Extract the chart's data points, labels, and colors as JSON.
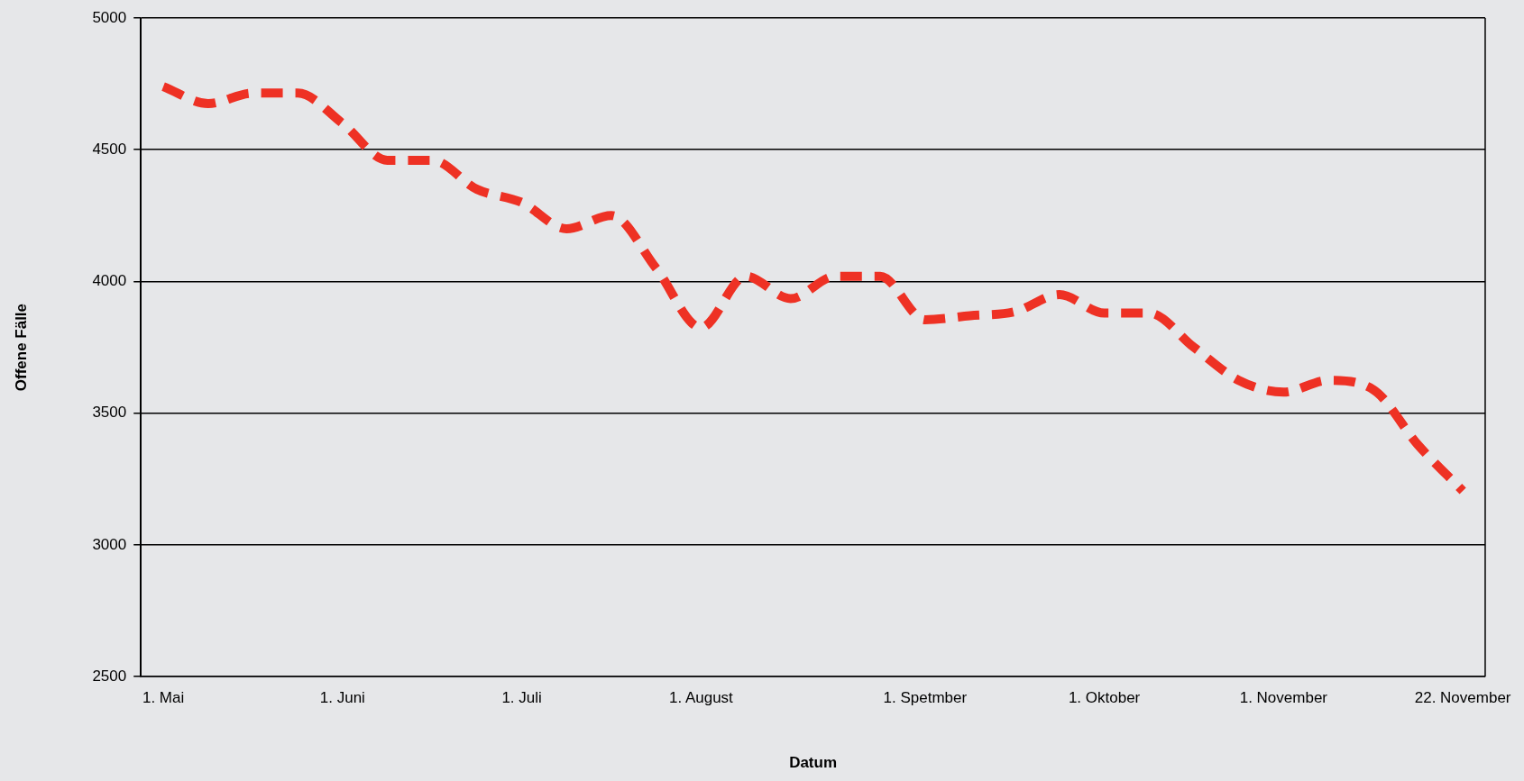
{
  "chart_data": {
    "type": "line",
    "xlabel": "Datum",
    "ylabel": "Offene Fälle",
    "categories": [
      "1. Mai",
      null,
      null,
      null,
      "1. Juni",
      null,
      null,
      null,
      "1. Juli",
      null,
      null,
      null,
      "1. August",
      null,
      null,
      null,
      null,
      "1. Spetmber",
      null,
      null,
      null,
      "1. Oktober",
      null,
      null,
      null,
      "1. November",
      null,
      null,
      null,
      "22. November"
    ],
    "series": [
      {
        "color": "#ee3124",
        "values": [
          4740,
          4675,
          4715,
          4715,
          4600,
          4460,
          4460,
          4350,
          4300,
          4200,
          4250,
          4050,
          3825,
          4020,
          3935,
          4020,
          4020,
          3855,
          3870,
          3885,
          3950,
          3880,
          3880,
          3750,
          3625,
          3580,
          3625,
          3590,
          3380,
          3205
        ]
      }
    ],
    "ylim": [
      2500,
      5000
    ],
    "yticks": [
      2500,
      3000,
      3500,
      4000,
      4500,
      5000
    ],
    "grid": "y",
    "legend": false,
    "marker": "none",
    "line_style": "dashed"
  }
}
